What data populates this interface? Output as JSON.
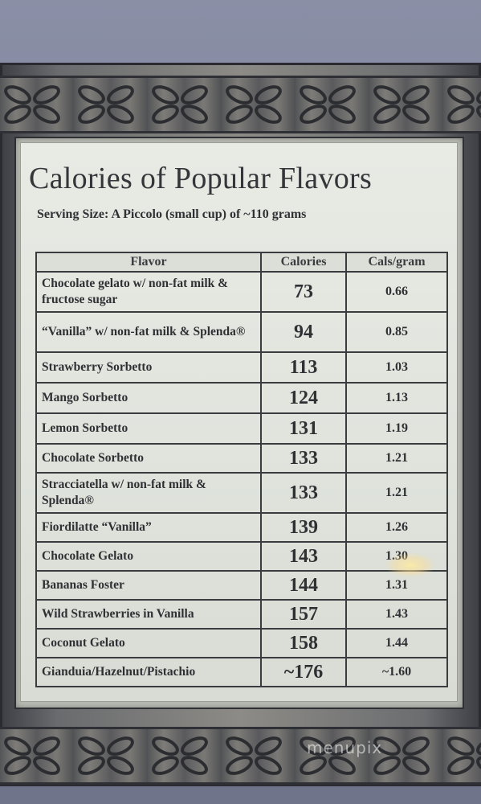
{
  "card": {
    "title": "Calories of Popular Flavors",
    "subtitle": "Serving Size: A Piccolo (small cup) of ~110 grams"
  },
  "table": {
    "headers": [
      "Flavor",
      "Calories",
      "Cals/gram"
    ],
    "rows": [
      {
        "flavor": "Chocolate gelato w/ non-fat milk & fructose sugar",
        "calories": "73",
        "cals_per_gram": "0.66"
      },
      {
        "flavor": "“Vanilla” w/ non-fat milk & Splenda®",
        "calories": "94",
        "cals_per_gram": "0.85"
      },
      {
        "flavor": "Strawberry Sorbetto",
        "calories": "113",
        "cals_per_gram": "1.03"
      },
      {
        "flavor": "Mango Sorbetto",
        "calories": "124",
        "cals_per_gram": "1.13"
      },
      {
        "flavor": "Lemon Sorbetto",
        "calories": "131",
        "cals_per_gram": "1.19"
      },
      {
        "flavor": "Chocolate Sorbetto",
        "calories": "133",
        "cals_per_gram": "1.21"
      },
      {
        "flavor": "Stracciatella w/ non-fat milk & Splenda®",
        "calories": "133",
        "cals_per_gram": "1.21"
      },
      {
        "flavor": "Fiordilatte “Vanilla”",
        "calories": "139",
        "cals_per_gram": "1.26"
      },
      {
        "flavor": "Chocolate Gelato",
        "calories": "143",
        "cals_per_gram": "1.30"
      },
      {
        "flavor": "Bananas Foster",
        "calories": "144",
        "cals_per_gram": "1.31"
      },
      {
        "flavor": "Wild Strawberries in Vanilla",
        "calories": "157",
        "cals_per_gram": "1.43"
      },
      {
        "flavor": "Coconut Gelato",
        "calories": "158",
        "cals_per_gram": "1.44"
      },
      {
        "flavor": "Gianduia/Hazelnut/Pistachio",
        "calories": "~176",
        "cals_per_gram": "~1.60"
      }
    ]
  },
  "watermark": "menupix",
  "colors": {
    "wall": "#7d8196",
    "frame": "#6a6b6e",
    "card": "#e3e6df",
    "text": "#2e3034",
    "calories_text": "#2d4f3e"
  }
}
